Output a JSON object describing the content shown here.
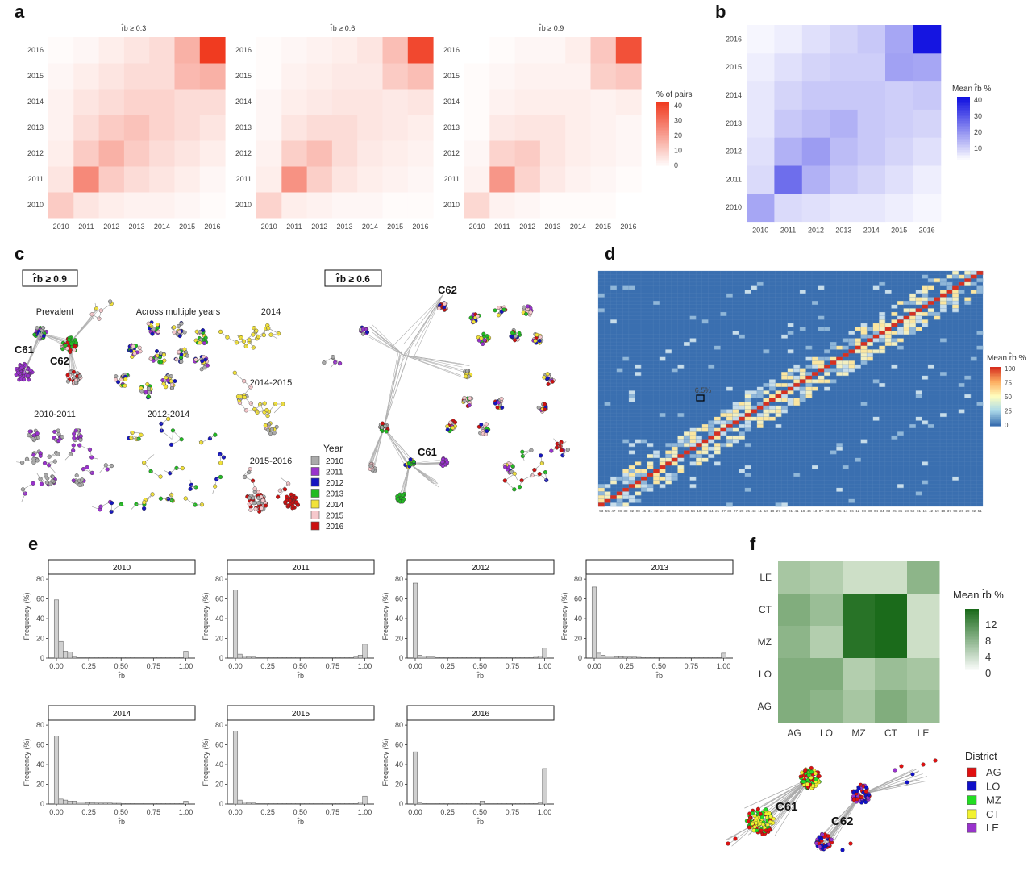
{
  "panel_labels": [
    "a",
    "b",
    "c",
    "d",
    "e",
    "f"
  ],
  "colors": {
    "heat_red": "#f03b20",
    "heat_purple": "#1010e0",
    "net_grey": "#aaaaaa",
    "d_low": "#3a6fb0",
    "d_high": "#d7301f",
    "green_high": "#1b6b1b"
  },
  "chart_data": [
    {
      "id": "a",
      "type": "heatmap",
      "legend_title": "% of pairs",
      "legend_ticks": [
        "40",
        "30",
        "20",
        "10",
        "0"
      ],
      "years": [
        "2010",
        "2011",
        "2012",
        "2013",
        "2014",
        "2015",
        "2016"
      ],
      "subplots": [
        {
          "title": "r̂b ≥ 0.3",
          "values": [
            [
              12,
              6,
              4,
              3,
              3,
              2,
              1
            ],
            [
              6,
              27,
              12,
              8,
              6,
              4,
              2
            ],
            [
              4,
              12,
              18,
              12,
              8,
              6,
              4
            ],
            [
              3,
              8,
              12,
              14,
              10,
              8,
              6
            ],
            [
              3,
              6,
              8,
              10,
              10,
              8,
              8
            ],
            [
              2,
              4,
              6,
              8,
              8,
              16,
              18
            ],
            [
              1,
              2,
              4,
              6,
              8,
              18,
              45
            ]
          ]
        },
        {
          "title": "r̂b ≥ 0.6",
          "values": [
            [
              10,
              4,
              3,
              2,
              2,
              1,
              1
            ],
            [
              4,
              25,
              11,
              6,
              4,
              3,
              2
            ],
            [
              3,
              11,
              15,
              8,
              5,
              4,
              3
            ],
            [
              2,
              6,
              8,
              8,
              6,
              5,
              4
            ],
            [
              2,
              4,
              5,
              6,
              6,
              5,
              6
            ],
            [
              1,
              3,
              4,
              5,
              5,
              12,
              15
            ],
            [
              1,
              2,
              3,
              4,
              6,
              15,
              42
            ]
          ]
        },
        {
          "title": "r̂b ≥ 0.9",
          "values": [
            [
              9,
              3,
              2,
              1,
              1,
              1,
              0
            ],
            [
              3,
              24,
              10,
              5,
              3,
              2,
              1
            ],
            [
              2,
              10,
              12,
              6,
              4,
              3,
              2
            ],
            [
              1,
              5,
              6,
              6,
              4,
              3,
              2
            ],
            [
              1,
              3,
              4,
              4,
              4,
              3,
              4
            ],
            [
              1,
              2,
              3,
              3,
              3,
              11,
              13
            ],
            [
              0,
              1,
              2,
              2,
              4,
              13,
              40
            ]
          ]
        }
      ]
    },
    {
      "id": "b",
      "type": "heatmap",
      "legend_title": "Mean r̂b %",
      "legend_ticks": [
        "40",
        "30",
        "20",
        "10"
      ],
      "years": [
        "2010",
        "2011",
        "2012",
        "2013",
        "2014",
        "2015",
        "2016"
      ],
      "values": [
        [
          14,
          5,
          4,
          3,
          3,
          2,
          1
        ],
        [
          5,
          25,
          12,
          8,
          6,
          4,
          2
        ],
        [
          4,
          12,
          16,
          10,
          8,
          6,
          4
        ],
        [
          3,
          8,
          10,
          12,
          8,
          7,
          6
        ],
        [
          3,
          6,
          8,
          8,
          8,
          7,
          8
        ],
        [
          2,
          4,
          6,
          7,
          7,
          15,
          14
        ],
        [
          1,
          2,
          4,
          6,
          8,
          14,
          44
        ]
      ]
    },
    {
      "id": "d",
      "type": "heatmap",
      "legend_title": "Mean r̂b %",
      "legend_ticks": [
        "100",
        "75",
        "50",
        "25",
        "0"
      ],
      "annotation": "6.5%",
      "x_labels": [
        "53",
        "55",
        "47",
        "28",
        "39",
        "32",
        "08",
        "45",
        "31",
        "22",
        "24",
        "20",
        "57",
        "60",
        "50",
        "54",
        "10",
        "43",
        "44",
        "21",
        "37",
        "38",
        "27",
        "29",
        "25",
        "43",
        "11",
        "16",
        "18",
        "27",
        "08",
        "01",
        "41",
        "18",
        "44",
        "13",
        "07",
        "23",
        "09",
        "05",
        "14",
        "06",
        "12",
        "08",
        "30",
        "04",
        "34",
        "03",
        "25",
        "35",
        "58",
        "59",
        "01",
        "16",
        "42",
        "19",
        "18",
        "37",
        "58",
        "26",
        "29",
        "02",
        "51"
      ]
    },
    {
      "id": "e",
      "type": "bar",
      "ylabel": "Frequency (%)",
      "xlabel": "r̂b",
      "x_ticks": [
        "0.00",
        "0.25",
        "0.50",
        "0.75",
        "1.00"
      ],
      "y_ticks": [
        "0",
        "20",
        "40",
        "60",
        "80"
      ],
      "ylim": [
        0,
        85
      ],
      "bins": 30,
      "subplots": [
        {
          "title": "2010",
          "values": [
            59,
            17,
            7,
            6,
            1,
            0.5,
            0.5,
            0.4,
            0.3,
            0.3,
            0.3,
            0.5,
            0.5,
            0.3,
            0.3,
            0.2,
            0.3,
            0.3,
            0.3,
            0.2,
            0.2,
            0.2,
            0.3,
            0.3,
            0.2,
            0.2,
            0.2,
            0.3,
            0.4,
            7
          ]
        },
        {
          "title": "2011",
          "values": [
            69,
            4,
            2,
            1,
            1,
            0.5,
            0.5,
            0.4,
            0.3,
            0.3,
            0.3,
            0.5,
            0.5,
            0.3,
            0.3,
            0.2,
            0.3,
            0.3,
            0.3,
            0.2,
            0.2,
            0.2,
            0.3,
            0.3,
            0.2,
            0.2,
            0.5,
            1,
            3,
            14
          ]
        },
        {
          "title": "2012",
          "values": [
            76,
            3,
            2,
            1,
            1,
            0.5,
            0.5,
            0.4,
            0.3,
            0.3,
            0.3,
            0.5,
            0.5,
            0.3,
            0.3,
            0.2,
            0.3,
            0.3,
            0.3,
            0.2,
            0.2,
            0.2,
            0.3,
            0.3,
            0.2,
            0.2,
            0.3,
            0.8,
            2,
            10
          ]
        },
        {
          "title": "2013",
          "values": [
            72,
            5,
            3,
            2,
            2,
            1.5,
            1.5,
            1,
            1,
            1,
            0.8,
            0.5,
            0.5,
            0.5,
            0.5,
            0.4,
            0.4,
            0.4,
            0.4,
            0.3,
            0.3,
            0.3,
            0.3,
            0.3,
            0.3,
            0.3,
            0.3,
            0.3,
            0.5,
            5
          ]
        },
        {
          "title": "2014",
          "values": [
            69,
            5,
            4,
            3,
            3,
            2,
            2,
            1.5,
            1.5,
            1,
            1,
            1,
            1,
            0.8,
            0.8,
            0.5,
            0.5,
            0.5,
            0.4,
            0.4,
            0.3,
            0.3,
            0.3,
            0.3,
            0.3,
            0.3,
            0.3,
            0.3,
            0.5,
            3
          ]
        },
        {
          "title": "2015",
          "values": [
            74,
            4,
            2,
            1,
            1,
            0.6,
            0.5,
            0.4,
            0.3,
            0.3,
            0.3,
            0.5,
            0.5,
            0.3,
            0.3,
            0.2,
            0.3,
            0.3,
            0.3,
            0.2,
            0.2,
            0.2,
            0.3,
            0.3,
            0.2,
            0.2,
            0.3,
            0.5,
            2,
            8
          ]
        },
        {
          "title": "2016",
          "values": [
            53,
            1,
            0.5,
            0.4,
            0.3,
            0.3,
            0.3,
            0.3,
            0.3,
            0.3,
            0.3,
            0.3,
            0.3,
            0.3,
            0.3,
            3,
            0.3,
            0.3,
            0.3,
            0.3,
            0.3,
            0.3,
            0.3,
            0.3,
            0.3,
            0.3,
            0.3,
            0.5,
            1,
            36
          ]
        }
      ]
    },
    {
      "id": "f",
      "type": "heatmap",
      "legend_title": "Mean r̂b %",
      "legend_ticks": [
        "12",
        "8",
        "4",
        "0"
      ],
      "x_labels": [
        "AG",
        "LO",
        "MZ",
        "CT",
        "LE"
      ],
      "y_labels": [
        "LE",
        "CT",
        "MZ",
        "LO",
        "AG"
      ],
      "values": [
        [
          5,
          4,
          2,
          2,
          7
        ],
        [
          8,
          6,
          15,
          16,
          2
        ],
        [
          7,
          4,
          15,
          16,
          2
        ],
        [
          8,
          8,
          4,
          6,
          5
        ],
        [
          8,
          7,
          5,
          8,
          6
        ]
      ]
    }
  ],
  "panel_c": {
    "box_left": "r̂b ≥ 0.9",
    "box_right": "r̂b ≥ 0.6",
    "group_labels": [
      "Prevalent",
      "Across multiple years",
      "2014",
      "2014-2015",
      "2015-2016",
      "2010-2011",
      "2012-2014"
    ],
    "cluster_labels": [
      "C61",
      "C62",
      "C62",
      "C61"
    ],
    "legend_title": "Year",
    "legend_items": [
      {
        "label": "2010",
        "color": "#aaaaaa"
      },
      {
        "label": "2011",
        "color": "#9932cc"
      },
      {
        "label": "2012",
        "color": "#1515c0"
      },
      {
        "label": "2013",
        "color": "#22bb22"
      },
      {
        "label": "2014",
        "color": "#f2e23a"
      },
      {
        "label": "2015",
        "color": "#f6c8cc"
      },
      {
        "label": "2016",
        "color": "#cc1111"
      }
    ]
  },
  "panel_f_network": {
    "legend_title": "District",
    "legend_items": [
      {
        "label": "AG",
        "color": "#e01010"
      },
      {
        "label": "LO",
        "color": "#1010c8"
      },
      {
        "label": "MZ",
        "color": "#22dd22"
      },
      {
        "label": "CT",
        "color": "#f2f230"
      },
      {
        "label": "LE",
        "color": "#9933cc"
      }
    ],
    "cluster_labels": [
      "C61",
      "C62"
    ]
  }
}
